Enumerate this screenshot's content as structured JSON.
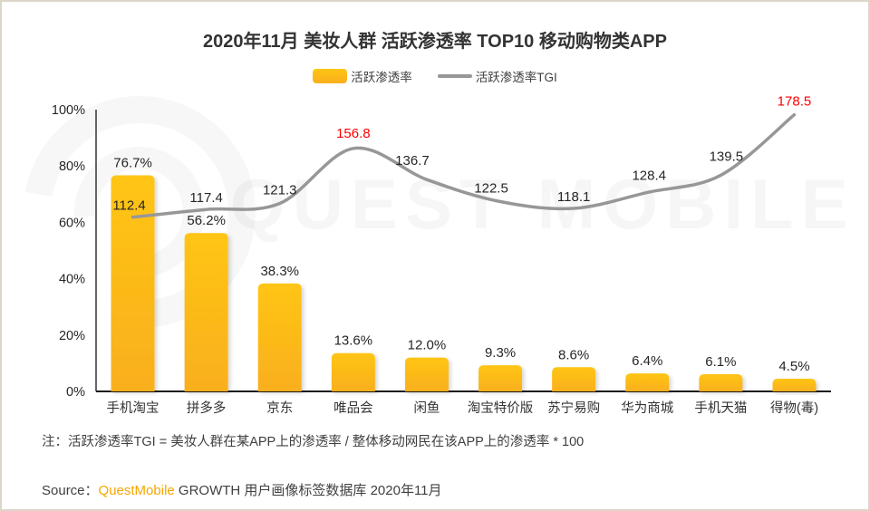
{
  "title": "2020年11月 美妆人群 活跃渗透率 TOP10 移动购物类APP",
  "legend": [
    {
      "label": "活跃渗透率",
      "type": "bar",
      "color": "#fdbf17"
    },
    {
      "label": "活跃渗透率TGI",
      "type": "line",
      "color": "#979797"
    }
  ],
  "chart_data": {
    "type": "bar+line combo",
    "title": "2020年11月 美妆人群 活跃渗透率 TOP10 移动购物类APP",
    "categories": [
      "手机淘宝",
      "拼多多",
      "京东",
      "唯品会",
      "闲鱼",
      "淘宝特价版",
      "苏宁易购",
      "华为商城",
      "手机天猫",
      "得物(毒)"
    ],
    "series": [
      {
        "name": "活跃渗透率",
        "type": "bar",
        "unit": "%",
        "values": [
          76.7,
          56.2,
          38.3,
          13.6,
          12.0,
          9.3,
          8.6,
          6.4,
          6.1,
          4.5
        ]
      },
      {
        "name": "活跃渗透率TGI",
        "type": "line",
        "values": [
          112.4,
          117.4,
          121.3,
          156.8,
          136.7,
          122.5,
          118.1,
          128.4,
          139.5,
          178.5
        ],
        "highlight_indices": [
          3,
          9
        ],
        "highlight_color": "#ff0000"
      }
    ],
    "yaxis": {
      "min": 0,
      "max": 100,
      "ticks": [
        "0%",
        "20%",
        "40%",
        "60%",
        "80%",
        "100%"
      ]
    },
    "grid": false,
    "legend_position": "top"
  },
  "colors": {
    "bar_top": "#ffc513",
    "bar_bottom": "#f9af1e",
    "line": "#979797",
    "highlight": "#ff0000",
    "text": "#262626",
    "axis": "#333333"
  },
  "note": "注：活跃渗透率TGI = 美妆人群在某APP上的渗透率 / 整体移动网民在该APP上的渗透率 * 100",
  "source": {
    "prefix": "Source：",
    "brand": "QuestMobile",
    "rest": " GROWTH 用户画像标签数据库 2020年11月"
  },
  "watermark": "QUEST MOBILE"
}
